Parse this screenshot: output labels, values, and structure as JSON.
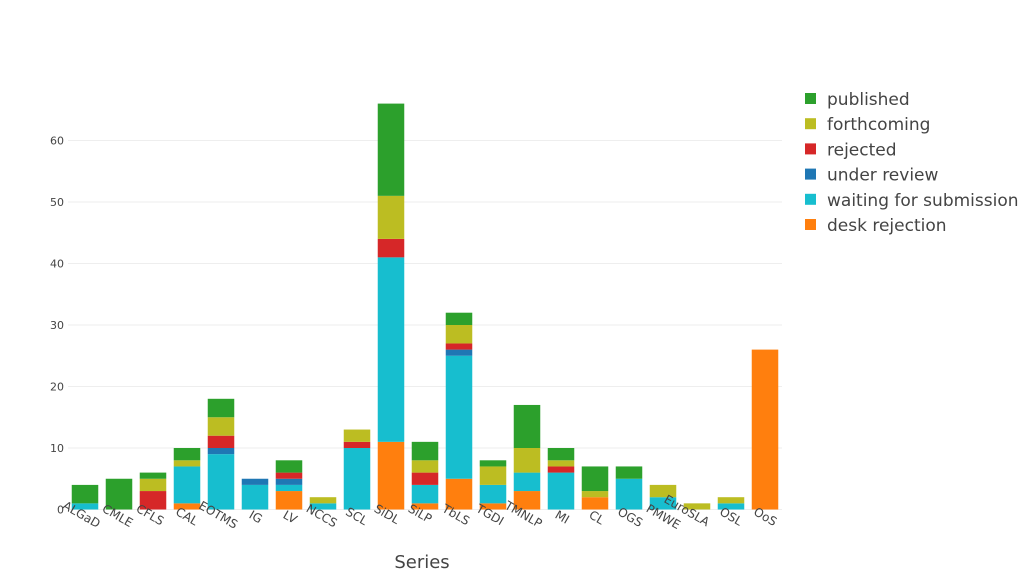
{
  "chart_data": {
    "type": "bar",
    "stacked": true,
    "xlabel": "Series",
    "ylabel": "",
    "ylim": [
      0,
      66
    ],
    "yticks": [
      0,
      10,
      20,
      30,
      40,
      50,
      60
    ],
    "grid": "horizontal",
    "legend_position": "top-right",
    "categories": [
      "ALGaD",
      "CMLE",
      "CFLS",
      "CAL",
      "EOTMS",
      "IG",
      "LV",
      "NCCS",
      "SCL",
      "SiDL",
      "SiLP",
      "TbLS",
      "TGDI",
      "TMNLP",
      "MI",
      "CL",
      "OGS",
      "PMWE",
      "EuroSLA",
      "OSL",
      "OoS"
    ],
    "series": [
      {
        "name": "desk rejection",
        "color": "#ff7f0e",
        "values": [
          0,
          0,
          0,
          1,
          0,
          0,
          3,
          0,
          0,
          11,
          1,
          5,
          1,
          3,
          0,
          2,
          0,
          0,
          0,
          0,
          26
        ]
      },
      {
        "name": "waiting for submission",
        "color": "#17becf",
        "values": [
          1,
          0,
          0,
          6,
          9,
          4,
          1,
          1,
          10,
          30,
          3,
          20,
          3,
          3,
          6,
          0,
          5,
          2,
          0,
          1,
          0
        ]
      },
      {
        "name": "under review",
        "color": "#1f77b4",
        "values": [
          0,
          0,
          0,
          0,
          1,
          1,
          1,
          0,
          0,
          0,
          0,
          1,
          0,
          0,
          0,
          0,
          0,
          0,
          0,
          0,
          0
        ]
      },
      {
        "name": "rejected",
        "color": "#d62728",
        "values": [
          0,
          0,
          3,
          0,
          2,
          0,
          1,
          0,
          1,
          3,
          2,
          1,
          0,
          0,
          1,
          0,
          0,
          0,
          0,
          0,
          0
        ]
      },
      {
        "name": "forthcoming",
        "color": "#bcbd22",
        "values": [
          0,
          0,
          2,
          1,
          3,
          0,
          0,
          1,
          2,
          7,
          2,
          3,
          3,
          4,
          1,
          1,
          0,
          2,
          1,
          1,
          0
        ]
      },
      {
        "name": "published",
        "color": "#2ca02c",
        "values": [
          3,
          5,
          1,
          2,
          3,
          0,
          2,
          0,
          0,
          15,
          3,
          2,
          1,
          7,
          2,
          4,
          2,
          0,
          0,
          0,
          0
        ]
      }
    ]
  }
}
